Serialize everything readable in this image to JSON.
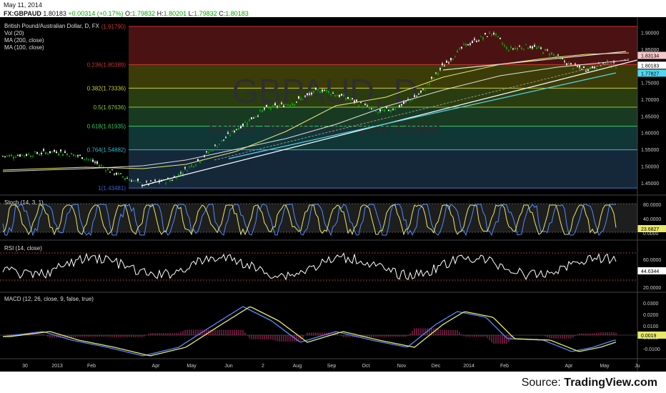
{
  "header": {
    "date": "May 11, 2014",
    "symbol": "FX:GBPAUD",
    "last": "1.80183",
    "change": "+0.00314 (+0.17%)",
    "o_label": "O:",
    "o": "1.79832",
    "h_label": "H:",
    "h": "1.80201",
    "l_label": "L:",
    "l": "1.79832",
    "c_label": "C:",
    "c": "1.80183"
  },
  "main_legend": [
    "British Pound/Australian Dollar, D, FX",
    "Vol (20)",
    "MA (200, close)",
    "MA (100, close)"
  ],
  "watermark": {
    "symbol": "GBPAUD, D",
    "name": "British Pound/Australian Dollar"
  },
  "fib_levels": [
    {
      "label": "(1.91790)",
      "value": 1.9179
    },
    {
      "label": "0.236(1.80389)",
      "value": 1.80389
    },
    {
      "label": "0.382(1.73336)",
      "value": 1.73336
    },
    {
      "label": "0.5(1.67636)",
      "value": 1.67636
    },
    {
      "label": "0.618(1.61935)",
      "value": 1.61935
    },
    {
      "label": "0.764(1.54882)",
      "value": 1.54882
    },
    {
      "label": "1(1.43481)",
      "value": 1.43481
    }
  ],
  "price_axis": [
    "1.90000",
    "1.85000",
    "1.80000",
    "1.75000",
    "1.70000",
    "1.65000",
    "1.60000",
    "1.55000",
    "1.50000",
    "1.45000"
  ],
  "price_markers": [
    {
      "label": "1.83134",
      "value": 1.83134,
      "color": "#f6c8c8"
    },
    {
      "label": "1.80183",
      "value": 1.80183,
      "color": "#ffffff"
    },
    {
      "label": "1.77827",
      "value": 1.77827,
      "color": "#4fd7f0"
    }
  ],
  "stoch": {
    "title": "Stoch (14, 3, 1)",
    "axis": [
      "80.0000",
      "40.0000",
      "0.0000"
    ],
    "marker": "23.6827"
  },
  "rsi": {
    "title": "RSI (14, close)",
    "axis": [
      "60.0000",
      "20.0000"
    ],
    "marker": "44.6344"
  },
  "macd": {
    "title": "MACD (12, 26, close, 9, false, true)",
    "axis": [
      "0.0300",
      "0.0200",
      "0.0100",
      "0.0000",
      "-0.0100"
    ],
    "marker": "0.0019"
  },
  "time_axis": [
    "30",
    "2013",
    "Feb",
    "Apr",
    "May",
    "Jun",
    "2",
    "Aug",
    "Sep",
    "Oct",
    "Nov",
    "Dec",
    "2014",
    "Feb",
    "Apr",
    "May",
    "Ju"
  ],
  "source": {
    "prefix": "Source: ",
    "brand": "TradingView.com"
  },
  "colors": {
    "price_up": "#00aa00",
    "ma200": "#ffffff",
    "ma100": "#e8e86a",
    "trend_cyan": "#4fd7f0",
    "stoch_k": "#4f8cff",
    "stoch_d": "#e8e86a"
  }
}
